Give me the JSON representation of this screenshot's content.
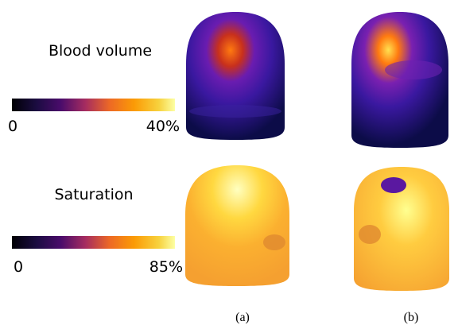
{
  "rows": [
    {
      "label": "Blood volume",
      "colorbar": {
        "min_label": "0",
        "max_label": "40%"
      }
    },
    {
      "label": "Saturation",
      "colorbar": {
        "min_label": "0",
        "max_label": "85%"
      }
    }
  ],
  "captions": [
    "(a)",
    "(b)"
  ]
}
